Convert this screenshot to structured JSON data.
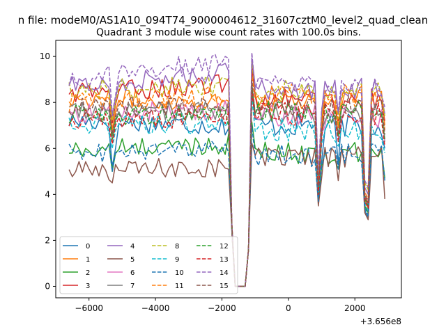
{
  "chart_data": {
    "type": "line",
    "suptitle": "n file: modeM0/AS1A10_094T74_9000004612_31607cztM0_level2_quad_clean",
    "title": "Quadrant 3 module wise count rates with 100.0s bins.",
    "xlabel": "",
    "ylabel": "",
    "x_offset_label": "+3.656e8",
    "xlim": [
      -7000,
      3400
    ],
    "ylim": [
      -0.5,
      10.7
    ],
    "x_ticks": [
      -6000,
      -4000,
      -2000,
      0,
      2000
    ],
    "x_tick_labels": [
      "−6000",
      "−4000",
      "−2000",
      "0",
      "2000"
    ],
    "y_ticks": [
      0,
      2,
      4,
      6,
      8,
      10
    ],
    "y_tick_labels": [
      "0",
      "2",
      "4",
      "6",
      "8",
      "10"
    ],
    "grid": false,
    "legend": {
      "placement": "lower-left",
      "ncol": 4
    },
    "x_start": -6600,
    "x_step": 100,
    "n_points": 96,
    "series": [
      {
        "name": "0",
        "color": "#1f77b4",
        "dash": "solid",
        "base": 7.2,
        "level_a": 7.0,
        "level_b": 7.0,
        "dip": 4.8,
        "dip_late": 3.0
      },
      {
        "name": "1",
        "color": "#ff7f0e",
        "dash": "solid",
        "base": 8.2,
        "level_a": 8.0,
        "level_b": 8.1,
        "dip": 6.4,
        "dip_late": 3.4
      },
      {
        "name": "2",
        "color": "#2ca02c",
        "dash": "solid",
        "base": 5.9,
        "level_a": 6.2,
        "level_b": 5.8,
        "dip": 4.6,
        "dip_late": 3.2
      },
      {
        "name": "3",
        "color": "#d62728",
        "dash": "solid",
        "base": 8.4,
        "level_a": 8.8,
        "level_b": 8.1,
        "dip": 6.7,
        "dip_late": 3.6
      },
      {
        "name": "4",
        "color": "#9467bd",
        "dash": "solid",
        "base": 8.7,
        "level_a": 9.3,
        "level_b": 8.6,
        "dip": 7.0,
        "dip_late": 4.0
      },
      {
        "name": "5",
        "color": "#8c564b",
        "dash": "solid",
        "base": 5.0,
        "level_a": 5.2,
        "level_b": 5.6,
        "dip": 4.1,
        "dip_late": 2.9
      },
      {
        "name": "6",
        "color": "#e377c2",
        "dash": "solid",
        "base": 7.5,
        "level_a": 7.7,
        "level_b": 7.4,
        "dip": 6.0,
        "dip_late": 3.5
      },
      {
        "name": "7",
        "color": "#7f7f7f",
        "dash": "solid",
        "base": 7.6,
        "level_a": 7.6,
        "level_b": 7.5,
        "dip": 6.1,
        "dip_late": 3.5
      },
      {
        "name": "8",
        "color": "#bcbd22",
        "dash": "dashed",
        "base": 8.6,
        "level_a": 8.7,
        "level_b": 8.5,
        "dip": 6.8,
        "dip_late": 4.2
      },
      {
        "name": "9",
        "color": "#17becf",
        "dash": "dashed",
        "base": 7.0,
        "level_a": 7.1,
        "level_b": 6.8,
        "dip": 5.6,
        "dip_late": 3.3
      },
      {
        "name": "10",
        "color": "#1f77b4",
        "dash": "dashed",
        "base": 5.8,
        "level_a": 5.9,
        "level_b": 5.7,
        "dip": 4.6,
        "dip_late": 3.1
      },
      {
        "name": "11",
        "color": "#ff7f0e",
        "dash": "dashed",
        "base": 8.0,
        "level_a": 8.3,
        "level_b": 8.3,
        "dip": 6.4,
        "dip_late": 3.8
      },
      {
        "name": "12",
        "color": "#2ca02c",
        "dash": "dashed",
        "base": 7.5,
        "level_a": 7.4,
        "level_b": 7.6,
        "dip": 6.0,
        "dip_late": 3.5
      },
      {
        "name": "13",
        "color": "#d62728",
        "dash": "dashed",
        "base": 7.3,
        "level_a": 7.3,
        "level_b": 7.5,
        "dip": 5.8,
        "dip_late": 3.4
      },
      {
        "name": "14",
        "color": "#9467bd",
        "dash": "dashed",
        "base": 9.0,
        "level_a": 9.8,
        "level_b": 8.8,
        "dip": 7.1,
        "dip_late": 4.3
      },
      {
        "name": "15",
        "color": "#8c564b",
        "dash": "dashed",
        "base": 7.8,
        "level_a": 7.9,
        "level_b": 7.8,
        "dip": 6.2,
        "dip_late": 3.7
      }
    ]
  }
}
